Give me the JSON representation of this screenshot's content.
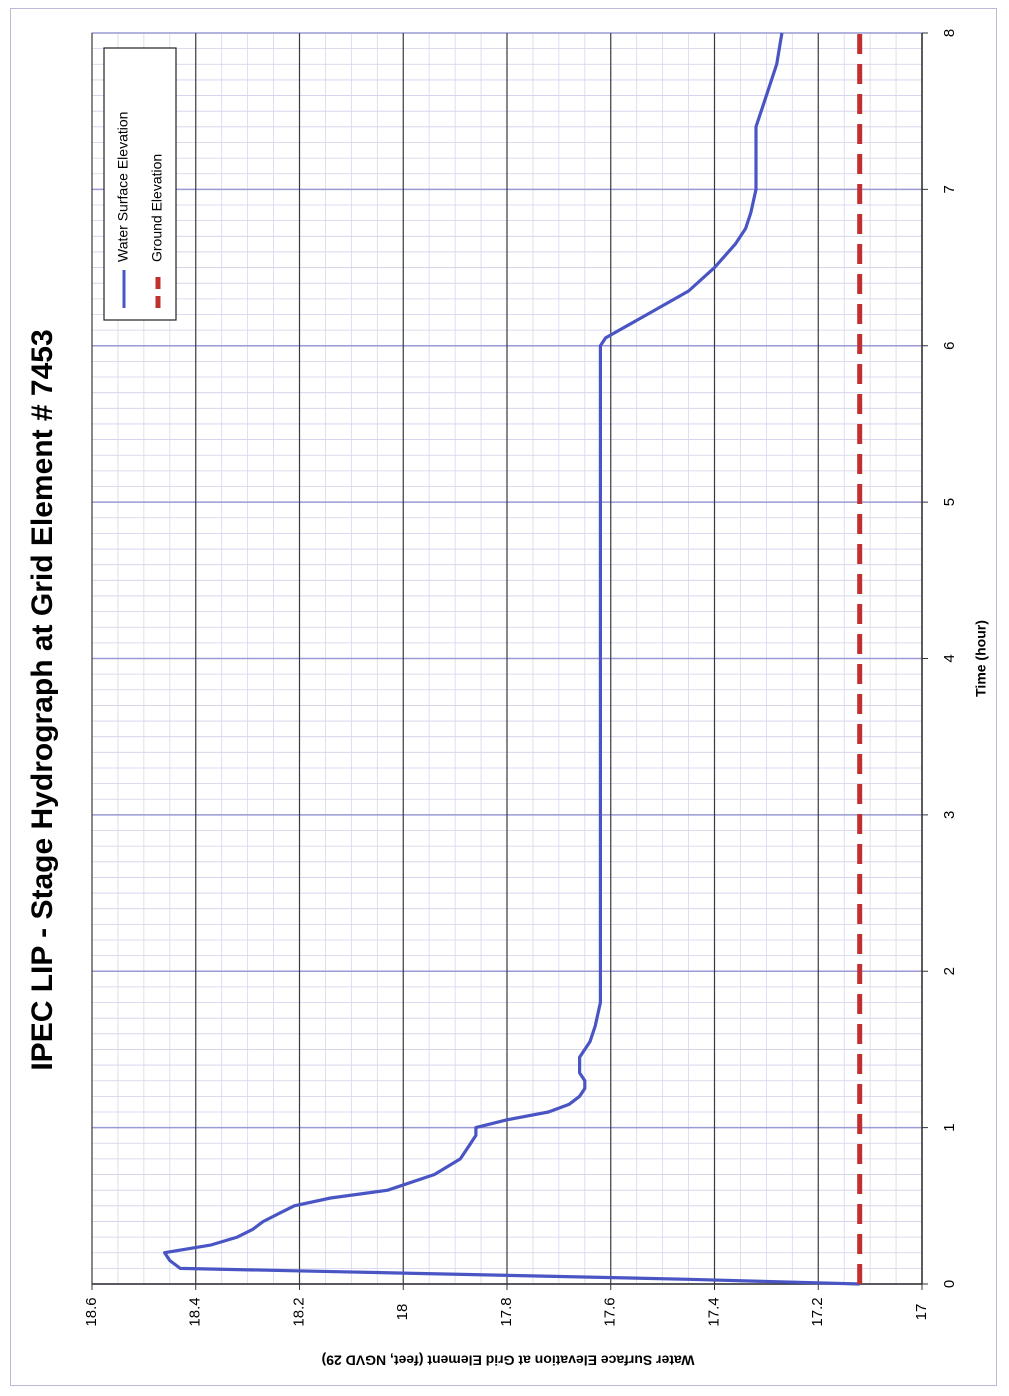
{
  "chart_data": {
    "type": "line",
    "orientation": "rotated-90-clockwise",
    "title": "IPEC LIP - Stage Hydrograph at Grid Element # 7453",
    "xlabel": "Time (hour)",
    "ylabel": "Water Surface Elevation at Grid Element (feet, NGVD 29)",
    "xlim": [
      0,
      8
    ],
    "ylim": [
      17,
      18.6
    ],
    "x_ticks": [
      0,
      1,
      2,
      3,
      4,
      5,
      6,
      7,
      8
    ],
    "x_tick_labels": [
      "0",
      "1",
      "2",
      "3",
      "4",
      "5",
      "6",
      "7",
      "8"
    ],
    "y_ticks": [
      17,
      17.2,
      17.4,
      17.6,
      17.8,
      18,
      18.2,
      18.4,
      18.6
    ],
    "y_tick_labels": [
      "17",
      "17.2",
      "17.4",
      "17.6",
      "17.8",
      "18",
      "18.2",
      "18.4",
      "18.6"
    ],
    "grid": true,
    "legend_position": "top-left",
    "series": [
      {
        "name": "Water Surface Elevation",
        "color": "#4a55c4",
        "style": "solid",
        "x": [
          0,
          0.03,
          0.07,
          0.1,
          0.15,
          0.2,
          0.25,
          0.3,
          0.35,
          0.4,
          0.45,
          0.5,
          0.55,
          0.6,
          0.7,
          0.8,
          0.9,
          0.95,
          1.0,
          1.05,
          1.1,
          1.15,
          1.2,
          1.25,
          1.3,
          1.35,
          1.45,
          1.55,
          1.65,
          1.8,
          2,
          3,
          4,
          5,
          5.5,
          5.9,
          6.0,
          6.05,
          6.2,
          6.35,
          6.5,
          6.65,
          6.75,
          6.85,
          7.0,
          7.2,
          7.4,
          7.6,
          7.8,
          8.0
        ],
        "y": [
          17.12,
          17.45,
          18.0,
          18.43,
          18.45,
          18.46,
          18.37,
          18.32,
          18.29,
          18.27,
          18.24,
          18.21,
          18.14,
          18.03,
          17.94,
          17.89,
          17.87,
          17.86,
          17.86,
          17.8,
          17.72,
          17.68,
          17.66,
          17.65,
          17.65,
          17.66,
          17.66,
          17.64,
          17.63,
          17.62,
          17.62,
          17.62,
          17.62,
          17.62,
          17.62,
          17.62,
          17.62,
          17.61,
          17.53,
          17.45,
          17.4,
          17.36,
          17.34,
          17.33,
          17.32,
          17.32,
          17.32,
          17.3,
          17.28,
          17.27
        ]
      },
      {
        "name": "Ground Elevation",
        "color": "#c0302e",
        "style": "dashed",
        "x": [
          0,
          8
        ],
        "y": [
          17.12,
          17.12
        ]
      }
    ]
  }
}
